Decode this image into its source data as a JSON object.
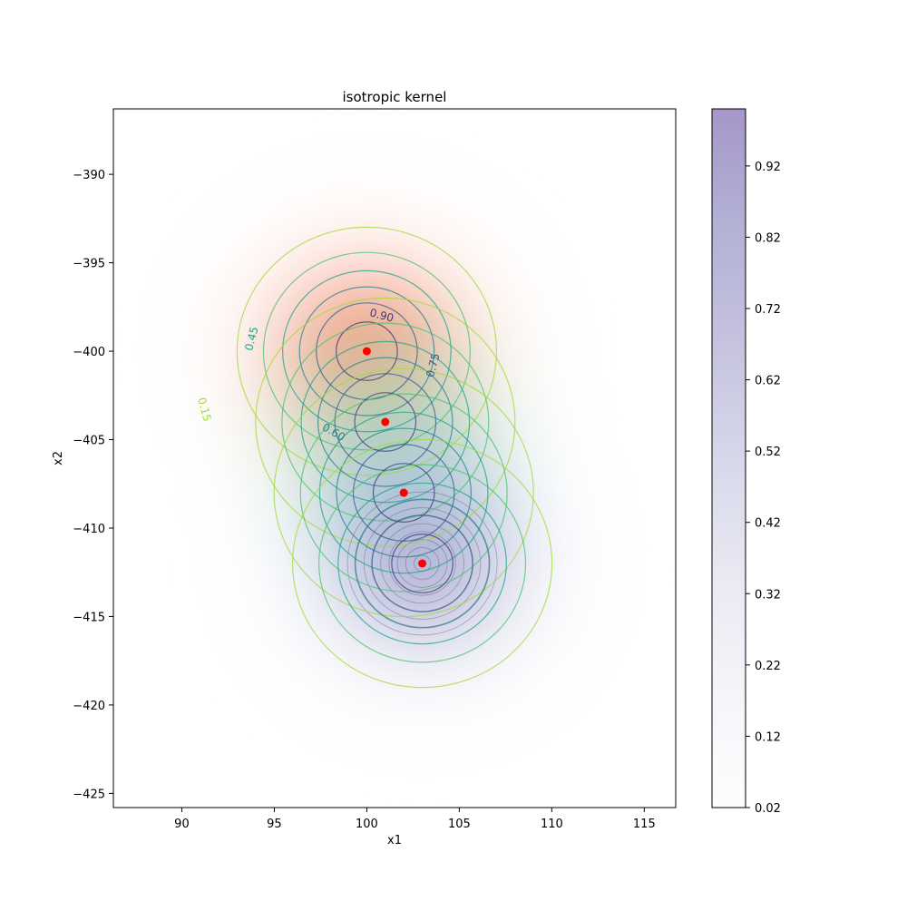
{
  "chart_data": {
    "type": "contour",
    "title": "isotropic kernel",
    "xlabel": "x1",
    "ylabel": "x2",
    "xlim": [
      86.3,
      116.7
    ],
    "ylim": [
      -425.8,
      -386.3
    ],
    "xticks": [
      90,
      95,
      100,
      105,
      110,
      115
    ],
    "yticks": [
      -390,
      -395,
      -400,
      -405,
      -410,
      -415,
      -420,
      -425
    ],
    "grid": false,
    "points": [
      {
        "x": 100,
        "y": -400
      },
      {
        "x": 101,
        "y": -404
      },
      {
        "x": 102,
        "y": -408
      },
      {
        "x": 103,
        "y": -412
      }
    ],
    "point_color": "#ff0000",
    "fill_colors": [
      "#fb6a4a",
      "#a1d99b",
      "#9ecae1",
      "#9e9ac8"
    ],
    "fill_alpha": 0.6,
    "kernel_scale": 3.6,
    "fill_extent": 13.5,
    "contour_levels": [
      0.15,
      0.3,
      0.45,
      0.6,
      0.75,
      0.9
    ],
    "contour_colors": [
      "#a0da39",
      "#4ac16d",
      "#1fa187",
      "#277f8e",
      "#365c8d",
      "#46327e"
    ],
    "contour_labels": [
      {
        "text": "0.90",
        "x": 100.8,
        "y": -398.0,
        "angle": 15,
        "level": 0.9
      },
      {
        "text": "0.45",
        "x": 93.8,
        "y": -399.3,
        "angle": -75,
        "level": 0.45
      },
      {
        "text": "0.75",
        "x": 103.6,
        "y": -400.8,
        "angle": -75,
        "level": 0.75
      },
      {
        "text": "0.15",
        "x": 91.2,
        "y": -403.3,
        "angle": 75,
        "level": 0.15
      },
      {
        "text": "0.60",
        "x": 98.2,
        "y": -404.6,
        "angle": 30,
        "level": 0.6
      }
    ],
    "colorbar": {
      "min": 0.02,
      "max": 1.0,
      "ticks": [
        "0.02",
        "0.12",
        "0.22",
        "0.32",
        "0.42",
        "0.52",
        "0.62",
        "0.72",
        "0.82",
        "0.92"
      ],
      "colors": [
        "#fcfbfd",
        "#efedf5",
        "#dadaeb",
        "#bcbddc",
        "#9e9ac8",
        "#807dba",
        "#6a51a3"
      ],
      "alpha": 0.6
    }
  }
}
